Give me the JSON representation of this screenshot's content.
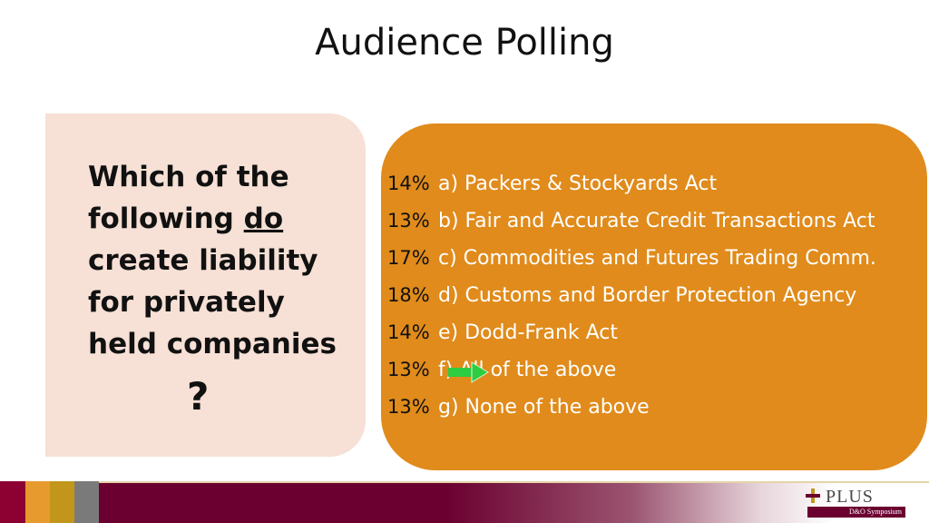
{
  "slide": {
    "title": "Audience Polling"
  },
  "question": {
    "line1": "Which of the",
    "line2_prefix": "following ",
    "line2_underlined": "do",
    "line3": "create liability",
    "line4": "for privately",
    "line5": "held companies",
    "mark": "?"
  },
  "answers": [
    {
      "percent": "14%",
      "label": "a) Packers & Stockyards Act"
    },
    {
      "percent": "13%",
      "label": "b) Fair and Accurate Credit Transactions Act"
    },
    {
      "percent": "17%",
      "label": "c) Commodities and Futures Trading Comm."
    },
    {
      "percent": "18%",
      "label": "d) Customs and Border Protection Agency"
    },
    {
      "percent": "14%",
      "label": "e) Dodd-Frank Act"
    },
    {
      "percent": "13%",
      "label": "f) All of the above"
    },
    {
      "percent": "13%",
      "label": "g) None of the above"
    }
  ],
  "correct_indicator": {
    "icon": "green-arrow-icon",
    "points_to": "f) All of the above"
  },
  "colors": {
    "question_bg": "#f7e0d5",
    "answers_bg": "#e08b1b",
    "footer": "#6b0030",
    "arrow": "#2ecc40"
  },
  "footer": {
    "logo_text": "PLUS",
    "logo_subtext": "D&O Symposium"
  }
}
